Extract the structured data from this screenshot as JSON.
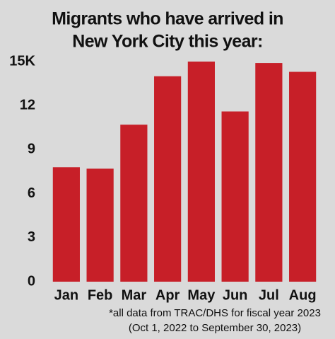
{
  "chart_data": {
    "type": "bar",
    "title": [
      "Migrants who have arrived in",
      "New York City this year:"
    ],
    "categories": [
      "Jan",
      "Feb",
      "Mar",
      "Apr",
      "May",
      "Jun",
      "Jul",
      "Aug"
    ],
    "values": [
      7.8,
      7.7,
      10.7,
      14.0,
      15.0,
      11.6,
      14.9,
      14.3
    ],
    "color": "#c71f28",
    "ylim": [
      0,
      15
    ],
    "yticks": [
      0,
      3,
      6,
      9,
      12,
      {
        "value": 15,
        "label": "15K"
      }
    ],
    "grid": false,
    "footnote": [
      "*all data from TRAC/DHS for fiscal year 2023",
      "(Oct 1, 2022 to September 30, 2023)"
    ]
  }
}
